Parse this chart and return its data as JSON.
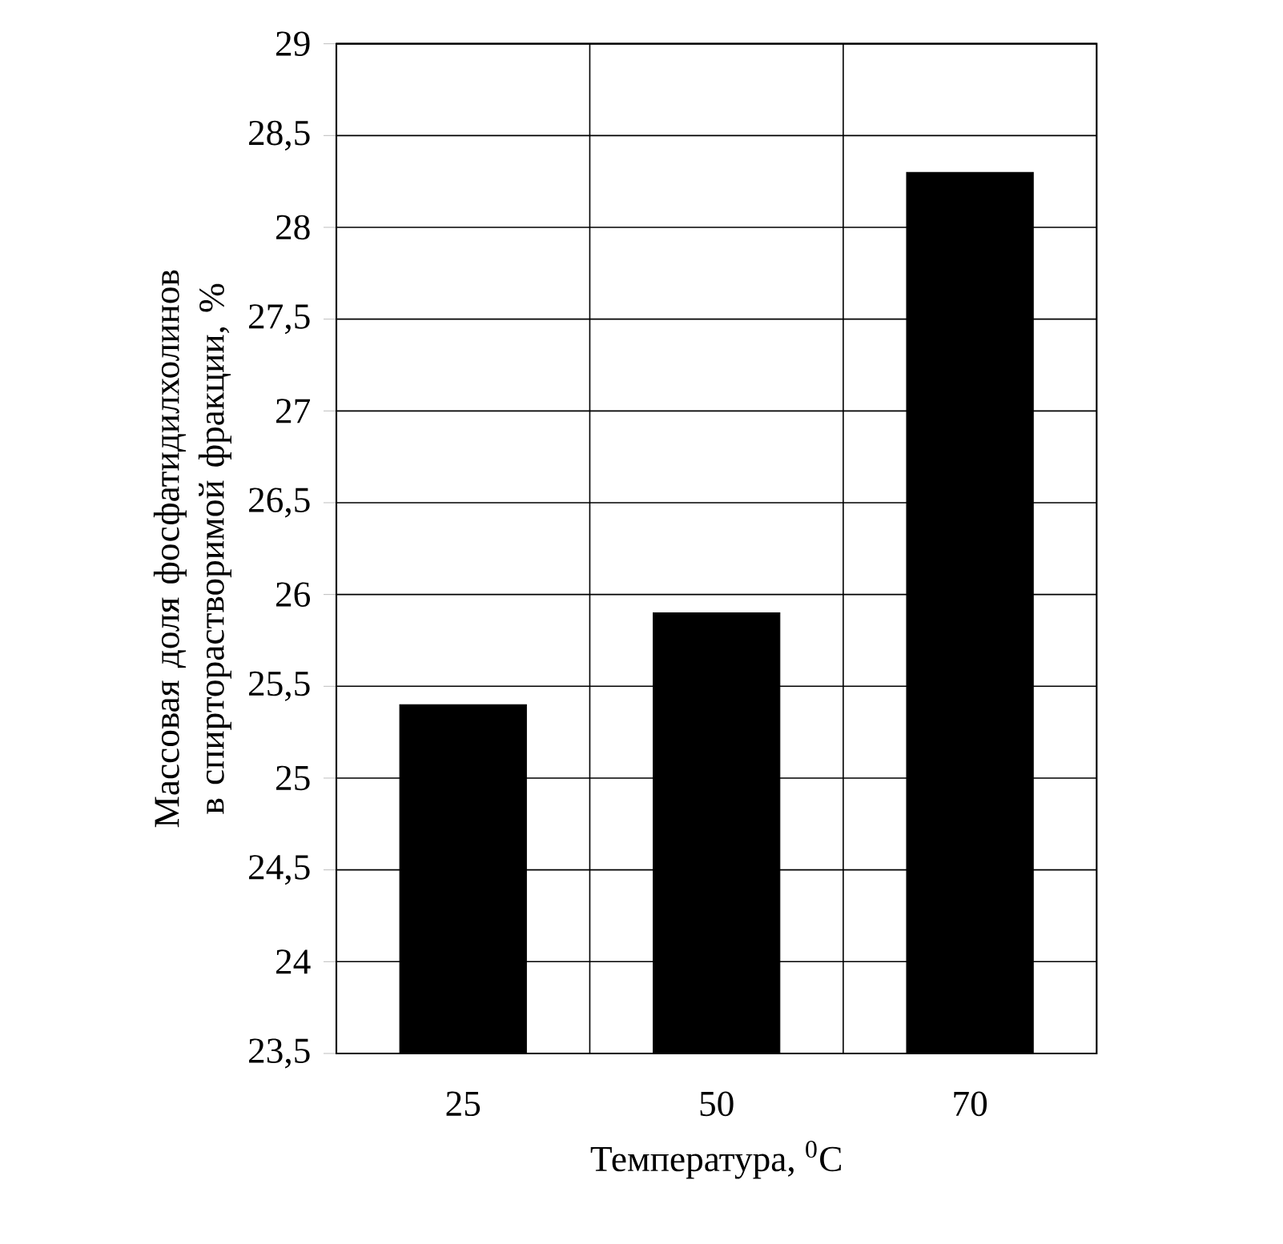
{
  "chart_data": {
    "type": "bar",
    "xlabel": "Температура, $^{0}$C",
    "ylabel": "Массовая доля  фосфатидилхолинов в спирторастворимой фракции, %",
    "categories": [
      "25",
      "50",
      "70"
    ],
    "values": [
      25.4,
      25.9,
      28.3
    ],
    "color": "#000000",
    "ylim": [
      23.5,
      29
    ],
    "yticks": [
      {
        "value": 23.5,
        "label": "23,5"
      },
      24,
      {
        "value": 24.5,
        "label": "24,5"
      },
      25,
      {
        "value": 25.5,
        "label": "25,5"
      },
      26,
      {
        "value": 26.5,
        "label": "26,5"
      },
      27,
      {
        "value": 27.5,
        "label": "27,5"
      },
      28,
      {
        "value": 28.5,
        "label": "28,5"
      },
      29
    ],
    "grid": true
  }
}
